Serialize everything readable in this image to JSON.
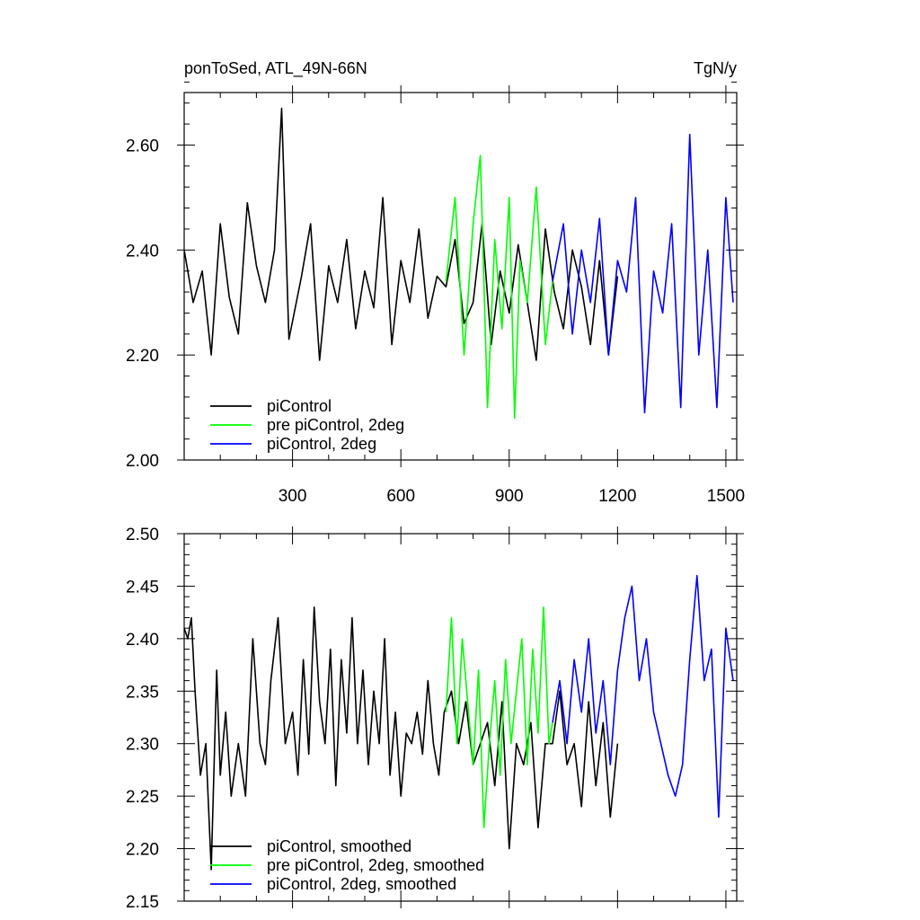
{
  "chart_data": [
    {
      "type": "line",
      "title_left": "ponToSed, ATL_49N-66N",
      "title_right": "TgN/y",
      "xlim": [
        0,
        1530
      ],
      "ylim": [
        2.0,
        2.7
      ],
      "x_ticks": [
        300,
        600,
        900,
        1200,
        1500
      ],
      "x_tick_labels": [
        "300",
        "600",
        "900",
        "1200",
        "1500"
      ],
      "y_ticks": [
        2.0,
        2.2,
        2.4,
        2.6
      ],
      "y_tick_labels": [
        "2.00",
        "2.20",
        "2.40",
        "2.60"
      ],
      "legend_position": "bottom-left",
      "series": [
        {
          "name": "piControl",
          "color": "#000000",
          "x": [
            0,
            25,
            50,
            75,
            100,
            125,
            150,
            175,
            200,
            225,
            250,
            270,
            290,
            325,
            350,
            375,
            400,
            425,
            450,
            475,
            500,
            525,
            550,
            575,
            600,
            625,
            650,
            675,
            700,
            725,
            750,
            775,
            800,
            825,
            850,
            875,
            900,
            925,
            950,
            975,
            1000,
            1025,
            1050,
            1075,
            1100,
            1125,
            1150,
            1175,
            1200
          ],
          "y": [
            2.4,
            2.3,
            2.36,
            2.2,
            2.45,
            2.31,
            2.24,
            2.49,
            2.37,
            2.3,
            2.4,
            2.67,
            2.23,
            2.35,
            2.45,
            2.19,
            2.37,
            2.3,
            2.42,
            2.25,
            2.36,
            2.29,
            2.5,
            2.22,
            2.38,
            2.3,
            2.44,
            2.27,
            2.35,
            2.33,
            2.42,
            2.26,
            2.3,
            2.45,
            2.22,
            2.36,
            2.28,
            2.41,
            2.3,
            2.19,
            2.44,
            2.32,
            2.25,
            2.4,
            2.33,
            2.22,
            2.38,
            2.2,
            2.35
          ]
        },
        {
          "name": "pre piControl, 2deg",
          "color": "#00ff00",
          "x": [
            725,
            750,
            775,
            800,
            820,
            840,
            860,
            880,
            900,
            915,
            930,
            950,
            975,
            1000,
            1020
          ],
          "y": [
            2.34,
            2.5,
            2.2,
            2.45,
            2.58,
            2.1,
            2.42,
            2.25,
            2.5,
            2.08,
            2.38,
            2.3,
            2.52,
            2.22,
            2.34
          ]
        },
        {
          "name": "piControl, 2deg",
          "color": "#0000ff",
          "x": [
            1020,
            1050,
            1075,
            1100,
            1125,
            1150,
            1175,
            1200,
            1225,
            1250,
            1275,
            1300,
            1325,
            1350,
            1375,
            1400,
            1425,
            1450,
            1475,
            1500,
            1520
          ],
          "y": [
            2.34,
            2.45,
            2.24,
            2.4,
            2.3,
            2.46,
            2.2,
            2.38,
            2.32,
            2.5,
            2.09,
            2.36,
            2.28,
            2.45,
            2.1,
            2.62,
            2.2,
            2.4,
            2.1,
            2.5,
            2.3
          ]
        }
      ]
    },
    {
      "type": "line",
      "xlim": [
        0,
        1530
      ],
      "ylim": [
        2.15,
        2.5
      ],
      "x_ticks": [
        300,
        600,
        900,
        1200,
        1500
      ],
      "y_ticks": [
        2.15,
        2.2,
        2.25,
        2.3,
        2.35,
        2.4,
        2.45,
        2.5
      ],
      "y_tick_labels": [
        "2.15",
        "2.20",
        "2.25",
        "2.30",
        "2.35",
        "2.40",
        "2.45",
        "2.50"
      ],
      "legend_position": "bottom-left",
      "series": [
        {
          "name": "piControl, smoothed",
          "color": "#000000",
          "x": [
            0,
            10,
            20,
            30,
            45,
            60,
            75,
            90,
            100,
            115,
            130,
            150,
            170,
            190,
            210,
            225,
            240,
            260,
            280,
            300,
            315,
            330,
            345,
            360,
            375,
            390,
            405,
            420,
            435,
            450,
            465,
            480,
            495,
            510,
            525,
            540,
            555,
            570,
            585,
            600,
            615,
            630,
            645,
            660,
            675,
            690,
            705,
            720,
            740,
            760,
            780,
            800,
            820,
            840,
            860,
            880,
            900,
            920,
            940,
            960,
            980,
            1000,
            1020,
            1040,
            1060,
            1080,
            1100,
            1120,
            1140,
            1160,
            1180,
            1200
          ],
          "y": [
            2.41,
            2.4,
            2.42,
            2.35,
            2.27,
            2.3,
            2.18,
            2.37,
            2.27,
            2.33,
            2.25,
            2.3,
            2.25,
            2.4,
            2.3,
            2.28,
            2.36,
            2.42,
            2.3,
            2.33,
            2.27,
            2.38,
            2.29,
            2.43,
            2.34,
            2.3,
            2.39,
            2.26,
            2.38,
            2.31,
            2.42,
            2.3,
            2.37,
            2.28,
            2.35,
            2.3,
            2.4,
            2.27,
            2.33,
            2.25,
            2.31,
            2.3,
            2.33,
            2.29,
            2.36,
            2.3,
            2.27,
            2.33,
            2.35,
            2.3,
            2.34,
            2.28,
            2.3,
            2.32,
            2.26,
            2.34,
            2.2,
            2.3,
            2.28,
            2.32,
            2.22,
            2.3,
            2.3,
            2.35,
            2.28,
            2.3,
            2.24,
            2.34,
            2.26,
            2.32,
            2.23,
            2.3
          ]
        },
        {
          "name": "pre piControl, 2deg, smoothed",
          "color": "#00ff00",
          "x": [
            725,
            740,
            755,
            770,
            785,
            800,
            815,
            830,
            845,
            860,
            875,
            890,
            905,
            920,
            935,
            950,
            965,
            980,
            995,
            1010,
            1020
          ],
          "y": [
            2.33,
            2.42,
            2.3,
            2.4,
            2.34,
            2.28,
            2.37,
            2.22,
            2.3,
            2.36,
            2.27,
            2.38,
            2.3,
            2.35,
            2.4,
            2.28,
            2.39,
            2.31,
            2.43,
            2.3,
            2.32
          ]
        },
        {
          "name": "piControl, 2deg, smoothed",
          "color": "#0000ff",
          "x": [
            1020,
            1040,
            1060,
            1080,
            1100,
            1120,
            1140,
            1160,
            1180,
            1200,
            1220,
            1240,
            1260,
            1280,
            1300,
            1320,
            1340,
            1360,
            1380,
            1400,
            1420,
            1440,
            1460,
            1480,
            1500,
            1520
          ],
          "y": [
            2.32,
            2.36,
            2.3,
            2.38,
            2.33,
            2.4,
            2.31,
            2.36,
            2.28,
            2.37,
            2.42,
            2.45,
            2.36,
            2.4,
            2.33,
            2.3,
            2.27,
            2.25,
            2.28,
            2.38,
            2.46,
            2.36,
            2.39,
            2.23,
            2.41,
            2.36
          ]
        }
      ]
    }
  ]
}
